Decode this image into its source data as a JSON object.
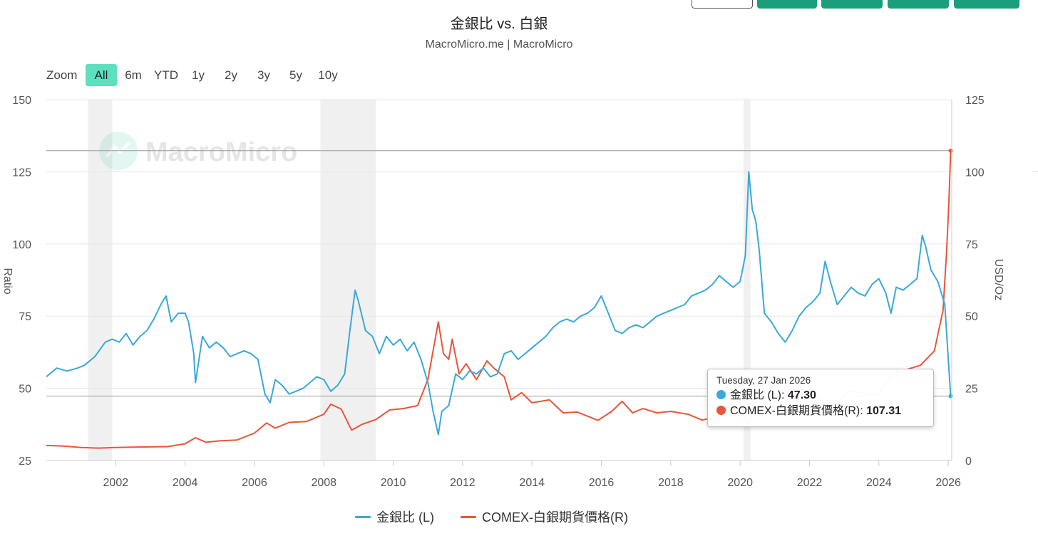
{
  "header": {
    "title": "金銀比 vs. 白銀",
    "subtitle": "MacroMicro.me | MacroMicro"
  },
  "watermark": "MacroMicro",
  "zoom": {
    "label": "Zoom",
    "options": [
      "All",
      "6m",
      "YTD",
      "1y",
      "2y",
      "3y",
      "5y",
      "10y"
    ],
    "active": "All"
  },
  "tooltip": {
    "date": "Tuesday, 27 Jan 2026",
    "rows": [
      {
        "label": "金銀比 (L): ",
        "value": "47.30",
        "color": "#3aa8d8"
      },
      {
        "label": "COMEX-白銀期貨價格(R): ",
        "value": "107.31",
        "color": "#e8553a"
      }
    ]
  },
  "chart_data": {
    "type": "line",
    "title": "金銀比 vs. 白銀",
    "subtitle": "MacroMicro.me | MacroMicro",
    "x_range": [
      2000.0,
      2026.1
    ],
    "x_ticks": [
      "2002",
      "2004",
      "2006",
      "2008",
      "2010",
      "2012",
      "2014",
      "2016",
      "2018",
      "2020",
      "2022",
      "2024",
      "2026"
    ],
    "y_left": {
      "label": "Ratio",
      "range": [
        25,
        150
      ],
      "ticks": [
        "25",
        "50",
        "75",
        "100",
        "125",
        "150"
      ]
    },
    "y_right": {
      "label": "USD/Oz",
      "range": [
        0,
        125
      ],
      "ticks": [
        "0",
        "25",
        "50",
        "75",
        "100",
        "125"
      ]
    },
    "recession_bands": [
      [
        2001.2,
        2001.9
      ],
      [
        2007.9,
        2009.5
      ],
      [
        2020.1,
        2020.3
      ]
    ],
    "crosshair": {
      "x": 2026.07,
      "left_value": 47.3,
      "right_value": 107.31
    },
    "series": [
      {
        "name": "金銀比 (L)",
        "axis": "left",
        "color": "#3aa8d8",
        "points": [
          [
            2000.0,
            54
          ],
          [
            2000.3,
            57
          ],
          [
            2000.6,
            56
          ],
          [
            2000.9,
            57
          ],
          [
            2001.1,
            58
          ],
          [
            2001.4,
            61
          ],
          [
            2001.7,
            66
          ],
          [
            2001.9,
            67
          ],
          [
            2002.1,
            66
          ],
          [
            2002.3,
            69
          ],
          [
            2002.5,
            65
          ],
          [
            2002.7,
            68
          ],
          [
            2002.9,
            70
          ],
          [
            2003.1,
            74
          ],
          [
            2003.3,
            79
          ],
          [
            2003.45,
            82
          ],
          [
            2003.6,
            73
          ],
          [
            2003.8,
            76
          ],
          [
            2004.0,
            76
          ],
          [
            2004.1,
            73
          ],
          [
            2004.25,
            62
          ],
          [
            2004.3,
            52
          ],
          [
            2004.5,
            68
          ],
          [
            2004.7,
            64
          ],
          [
            2004.9,
            66
          ],
          [
            2005.1,
            64
          ],
          [
            2005.3,
            61
          ],
          [
            2005.5,
            62
          ],
          [
            2005.7,
            63
          ],
          [
            2005.9,
            62
          ],
          [
            2006.1,
            60
          ],
          [
            2006.3,
            48
          ],
          [
            2006.45,
            45
          ],
          [
            2006.6,
            53
          ],
          [
            2006.8,
            51
          ],
          [
            2007.0,
            48
          ],
          [
            2007.2,
            49
          ],
          [
            2007.4,
            50
          ],
          [
            2007.6,
            52
          ],
          [
            2007.8,
            54
          ],
          [
            2008.0,
            53
          ],
          [
            2008.2,
            49
          ],
          [
            2008.4,
            51
          ],
          [
            2008.6,
            55
          ],
          [
            2008.75,
            70
          ],
          [
            2008.9,
            84
          ],
          [
            2009.0,
            80
          ],
          [
            2009.2,
            70
          ],
          [
            2009.4,
            68
          ],
          [
            2009.6,
            62
          ],
          [
            2009.8,
            68
          ],
          [
            2010.0,
            65
          ],
          [
            2010.2,
            67
          ],
          [
            2010.4,
            63
          ],
          [
            2010.6,
            66
          ],
          [
            2010.8,
            60
          ],
          [
            2011.0,
            52
          ],
          [
            2011.15,
            42
          ],
          [
            2011.3,
            34
          ],
          [
            2011.4,
            42
          ],
          [
            2011.6,
            44
          ],
          [
            2011.8,
            55
          ],
          [
            2012.0,
            53
          ],
          [
            2012.2,
            56
          ],
          [
            2012.4,
            55
          ],
          [
            2012.6,
            57
          ],
          [
            2012.8,
            54
          ],
          [
            2013.0,
            55
          ],
          [
            2013.2,
            62
          ],
          [
            2013.4,
            63
          ],
          [
            2013.6,
            60
          ],
          [
            2013.8,
            62
          ],
          [
            2014.0,
            64
          ],
          [
            2014.2,
            66
          ],
          [
            2014.4,
            68
          ],
          [
            2014.6,
            71
          ],
          [
            2014.8,
            73
          ],
          [
            2015.0,
            74
          ],
          [
            2015.2,
            73
          ],
          [
            2015.4,
            75
          ],
          [
            2015.6,
            76
          ],
          [
            2015.8,
            78
          ],
          [
            2016.0,
            82
          ],
          [
            2016.2,
            76
          ],
          [
            2016.4,
            70
          ],
          [
            2016.6,
            69
          ],
          [
            2016.8,
            71
          ],
          [
            2017.0,
            72
          ],
          [
            2017.2,
            71
          ],
          [
            2017.4,
            73
          ],
          [
            2017.6,
            75
          ],
          [
            2017.8,
            76
          ],
          [
            2018.0,
            77
          ],
          [
            2018.2,
            78
          ],
          [
            2018.4,
            79
          ],
          [
            2018.6,
            82
          ],
          [
            2018.8,
            83
          ],
          [
            2019.0,
            84
          ],
          [
            2019.2,
            86
          ],
          [
            2019.4,
            89
          ],
          [
            2019.6,
            87
          ],
          [
            2019.8,
            85
          ],
          [
            2020.0,
            87
          ],
          [
            2020.15,
            96
          ],
          [
            2020.25,
            125
          ],
          [
            2020.35,
            112
          ],
          [
            2020.45,
            108
          ],
          [
            2020.55,
            98
          ],
          [
            2020.7,
            76
          ],
          [
            2020.9,
            73
          ],
          [
            2021.1,
            69
          ],
          [
            2021.3,
            66
          ],
          [
            2021.5,
            70
          ],
          [
            2021.7,
            75
          ],
          [
            2021.9,
            78
          ],
          [
            2022.1,
            80
          ],
          [
            2022.3,
            83
          ],
          [
            2022.45,
            94
          ],
          [
            2022.6,
            87
          ],
          [
            2022.8,
            79
          ],
          [
            2023.0,
            82
          ],
          [
            2023.2,
            85
          ],
          [
            2023.4,
            83
          ],
          [
            2023.6,
            82
          ],
          [
            2023.8,
            86
          ],
          [
            2024.0,
            88
          ],
          [
            2024.2,
            83
          ],
          [
            2024.35,
            76
          ],
          [
            2024.5,
            85
          ],
          [
            2024.7,
            84
          ],
          [
            2024.9,
            86
          ],
          [
            2025.1,
            88
          ],
          [
            2025.25,
            103
          ],
          [
            2025.35,
            99
          ],
          [
            2025.5,
            91
          ],
          [
            2025.7,
            87
          ],
          [
            2025.9,
            79
          ],
          [
            2026.07,
            47.3
          ]
        ]
      },
      {
        "name": "COMEX-白銀期貨價格(R)",
        "axis": "right",
        "color": "#e8553a",
        "points": [
          [
            2000.0,
            5.2
          ],
          [
            2000.5,
            5.0
          ],
          [
            2001.0,
            4.5
          ],
          [
            2001.5,
            4.3
          ],
          [
            2002.0,
            4.5
          ],
          [
            2002.5,
            4.6
          ],
          [
            2003.0,
            4.7
          ],
          [
            2003.5,
            4.8
          ],
          [
            2004.0,
            5.8
          ],
          [
            2004.3,
            7.9
          ],
          [
            2004.6,
            6.3
          ],
          [
            2005.0,
            6.8
          ],
          [
            2005.5,
            7.1
          ],
          [
            2006.0,
            9.5
          ],
          [
            2006.35,
            13.0
          ],
          [
            2006.6,
            11.2
          ],
          [
            2007.0,
            13.2
          ],
          [
            2007.5,
            13.5
          ],
          [
            2008.0,
            16.0
          ],
          [
            2008.2,
            19.5
          ],
          [
            2008.5,
            17.8
          ],
          [
            2008.8,
            10.5
          ],
          [
            2009.1,
            12.5
          ],
          [
            2009.5,
            14.2
          ],
          [
            2009.9,
            17.5
          ],
          [
            2010.3,
            18.0
          ],
          [
            2010.7,
            19.0
          ],
          [
            2011.0,
            28.0
          ],
          [
            2011.3,
            48.0
          ],
          [
            2011.45,
            37.0
          ],
          [
            2011.6,
            35.0
          ],
          [
            2011.7,
            42.0
          ],
          [
            2011.9,
            30.0
          ],
          [
            2012.1,
            33.5
          ],
          [
            2012.4,
            28.0
          ],
          [
            2012.7,
            34.5
          ],
          [
            2012.9,
            32.0
          ],
          [
            2013.2,
            29.0
          ],
          [
            2013.4,
            21.0
          ],
          [
            2013.7,
            23.5
          ],
          [
            2014.0,
            20.0
          ],
          [
            2014.5,
            21.0
          ],
          [
            2014.9,
            16.5
          ],
          [
            2015.3,
            16.8
          ],
          [
            2015.9,
            13.9
          ],
          [
            2016.3,
            17.0
          ],
          [
            2016.6,
            20.5
          ],
          [
            2016.9,
            16.5
          ],
          [
            2017.2,
            18.0
          ],
          [
            2017.6,
            16.5
          ],
          [
            2018.0,
            17.0
          ],
          [
            2018.5,
            16.0
          ],
          [
            2018.9,
            14.0
          ],
          [
            2019.3,
            15.0
          ],
          [
            2019.6,
            18.5
          ],
          [
            2020.0,
            17.5
          ],
          [
            2020.25,
            12.0
          ],
          [
            2020.6,
            28.0
          ],
          [
            2021.0,
            26.5
          ],
          [
            2021.5,
            25.0
          ],
          [
            2022.0,
            23.0
          ],
          [
            2022.7,
            18.5
          ],
          [
            2023.1,
            24.0
          ],
          [
            2023.6,
            23.5
          ],
          [
            2024.0,
            23.0
          ],
          [
            2024.4,
            30.0
          ],
          [
            2024.8,
            31.5
          ],
          [
            2025.2,
            33.0
          ],
          [
            2025.6,
            38.0
          ],
          [
            2025.85,
            52.0
          ],
          [
            2025.95,
            72.0
          ],
          [
            2026.02,
            90.0
          ],
          [
            2026.07,
            107.31
          ]
        ]
      }
    ]
  }
}
